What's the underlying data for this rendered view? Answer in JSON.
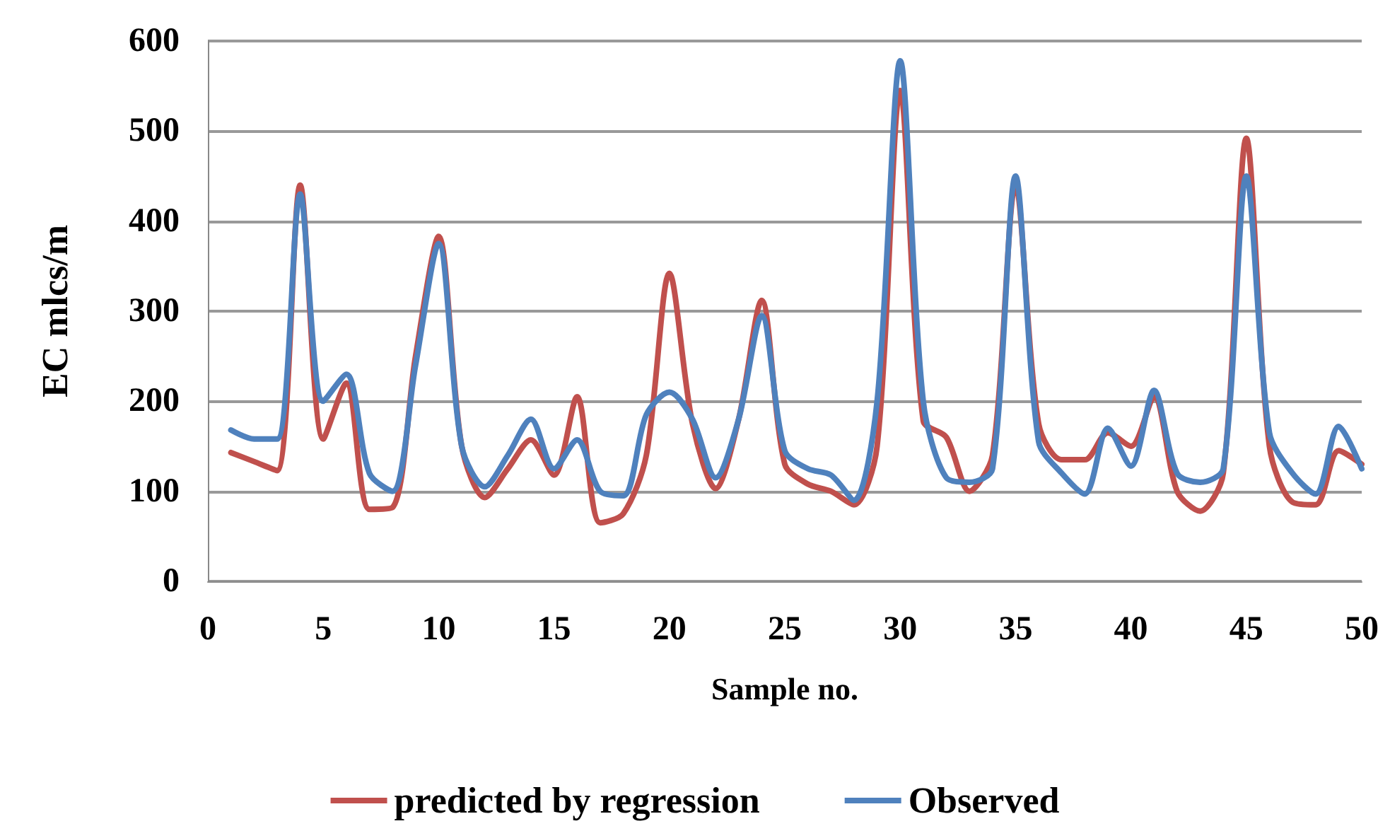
{
  "chart_data": {
    "type": "line",
    "xlabel": "Sample no.",
    "ylabel": "EC mlcs/m",
    "x": [
      1,
      2,
      3,
      4,
      5,
      6,
      7,
      8,
      9,
      10,
      11,
      12,
      13,
      14,
      15,
      16,
      17,
      18,
      19,
      20,
      21,
      22,
      23,
      24,
      25,
      26,
      27,
      28,
      29,
      30,
      31,
      32,
      33,
      34,
      35,
      36,
      37,
      38,
      39,
      40,
      41,
      42,
      43,
      44,
      45,
      46,
      47,
      48,
      49,
      50
    ],
    "series": [
      {
        "name": "predicted by regression",
        "color": "#c0504d",
        "values": [
          143,
          133,
          123,
          440,
          158,
          220,
          80,
          82,
          250,
          383,
          150,
          93,
          125,
          157,
          118,
          205,
          65,
          75,
          140,
          342,
          175,
          103,
          180,
          312,
          130,
          108,
          100,
          85,
          150,
          545,
          178,
          160,
          100,
          140,
          440,
          175,
          135,
          135,
          165,
          150,
          205,
          100,
          78,
          120,
          492,
          150,
          88,
          85,
          145,
          130
        ]
      },
      {
        "name": "Observed",
        "color": "#4f81bd",
        "values": [
          168,
          158,
          158,
          430,
          200,
          230,
          120,
          100,
          240,
          375,
          150,
          105,
          140,
          180,
          125,
          157,
          100,
          95,
          185,
          210,
          180,
          115,
          180,
          295,
          145,
          125,
          118,
          90,
          200,
          578,
          200,
          115,
          110,
          125,
          450,
          155,
          120,
          97,
          170,
          128,
          212,
          120,
          110,
          125,
          450,
          165,
          120,
          97,
          172,
          125
        ]
      }
    ],
    "xlim": [
      0,
      50
    ],
    "xticks": [
      0,
      5,
      10,
      15,
      20,
      25,
      30,
      35,
      40,
      45,
      50
    ],
    "ylim": [
      0,
      600
    ],
    "yticks": [
      0,
      100,
      200,
      300,
      400,
      500,
      600
    ],
    "grid": "y",
    "legend": "bottom",
    "marker": "none",
    "line_style": "solid"
  }
}
